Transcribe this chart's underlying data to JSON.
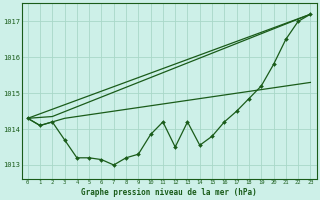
{
  "title": "Graphe pression niveau de la mer (hPa)",
  "background_color": "#cdf0e8",
  "grid_color": "#a8d8c8",
  "line_color": "#1a5c1a",
  "xlim": [
    -0.5,
    23.5
  ],
  "ylim": [
    1012.6,
    1017.5
  ],
  "yticks": [
    1013,
    1014,
    1015,
    1016,
    1017
  ],
  "xticks": [
    0,
    1,
    2,
    3,
    4,
    5,
    6,
    7,
    8,
    9,
    10,
    11,
    12,
    13,
    14,
    15,
    16,
    17,
    18,
    19,
    20,
    21,
    22,
    23
  ],
  "x": [
    0,
    1,
    2,
    3,
    4,
    5,
    6,
    7,
    8,
    9,
    10,
    11,
    12,
    13,
    14,
    15,
    16,
    17,
    18,
    19,
    20,
    21,
    22,
    23
  ],
  "y_zigzag": [
    1014.3,
    1014.1,
    1014.2,
    1013.7,
    1013.2,
    1013.2,
    1013.15,
    1013.0,
    1013.2,
    1013.3,
    1013.85,
    1014.2,
    1013.5,
    1014.2,
    1013.55,
    1013.8,
    1014.2,
    1014.5,
    1014.85,
    1015.2,
    1015.8,
    1016.5,
    1017.0,
    1017.2
  ],
  "line1_x": [
    0,
    23
  ],
  "line1_y": [
    1014.3,
    1017.2
  ],
  "line2_x": [
    0,
    3,
    23
  ],
  "line2_y": [
    1014.3,
    1014.55,
    1017.2
  ],
  "line3_x": [
    0,
    3,
    23
  ],
  "line3_y": [
    1014.3,
    1014.4,
    1015.3
  ]
}
